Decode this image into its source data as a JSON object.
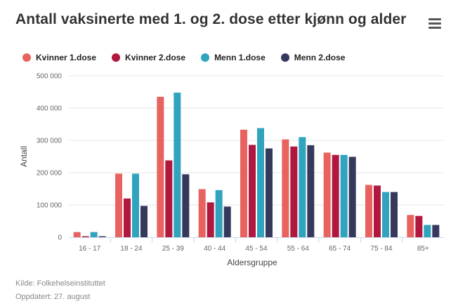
{
  "header": {
    "title": "Antall vaksinerte med 1. og 2. dose etter kjønn og alder",
    "menu_icon": "hamburger-menu-icon"
  },
  "footer": {
    "source": "Kilde: Folkehelseinstituttet",
    "updated": "Oppdatert: 27. august"
  },
  "colors": {
    "kvinner_1": "#E8635F",
    "kvinner_2": "#B0183F",
    "menn_1": "#30A4BF",
    "menn_2": "#353A5C",
    "grid": "#e6e6e6",
    "axis": "#ccd6eb"
  },
  "chart_data": {
    "type": "bar",
    "title": "Antall vaksinerte med 1. og 2. dose etter kjønn og alder",
    "xlabel": "Aldersgruppe",
    "ylabel": "Antall",
    "ylim": [
      0,
      500000
    ],
    "yticks": [
      0,
      100000,
      200000,
      300000,
      400000,
      500000
    ],
    "ytick_labels": [
      "0",
      "100 000",
      "200 000",
      "300 000",
      "400 000",
      "500 000"
    ],
    "grid": true,
    "legend_position": "top-left",
    "categories": [
      "16 - 17",
      "18 - 24",
      "25 - 39",
      "40 - 44",
      "45 - 54",
      "55 - 64",
      "65 - 74",
      "75 - 84",
      "85+"
    ],
    "series": [
      {
        "name": "Kvinner 1.dose",
        "color": "#E8635F",
        "values": [
          16000,
          197000,
          435000,
          149000,
          333000,
          303000,
          262000,
          162000,
          69000
        ]
      },
      {
        "name": "Kvinner 2.dose",
        "color": "#B0183F",
        "values": [
          3000,
          120000,
          238000,
          108000,
          286000,
          281000,
          255000,
          160000,
          66000
        ]
      },
      {
        "name": "Menn 1.dose",
        "color": "#30A4BF",
        "values": [
          16000,
          197000,
          448000,
          146000,
          338000,
          310000,
          255000,
          140000,
          38000
        ]
      },
      {
        "name": "Menn 2.dose",
        "color": "#353A5C",
        "values": [
          3000,
          97000,
          195000,
          95000,
          275000,
          285000,
          249000,
          140000,
          38000
        ]
      }
    ]
  }
}
